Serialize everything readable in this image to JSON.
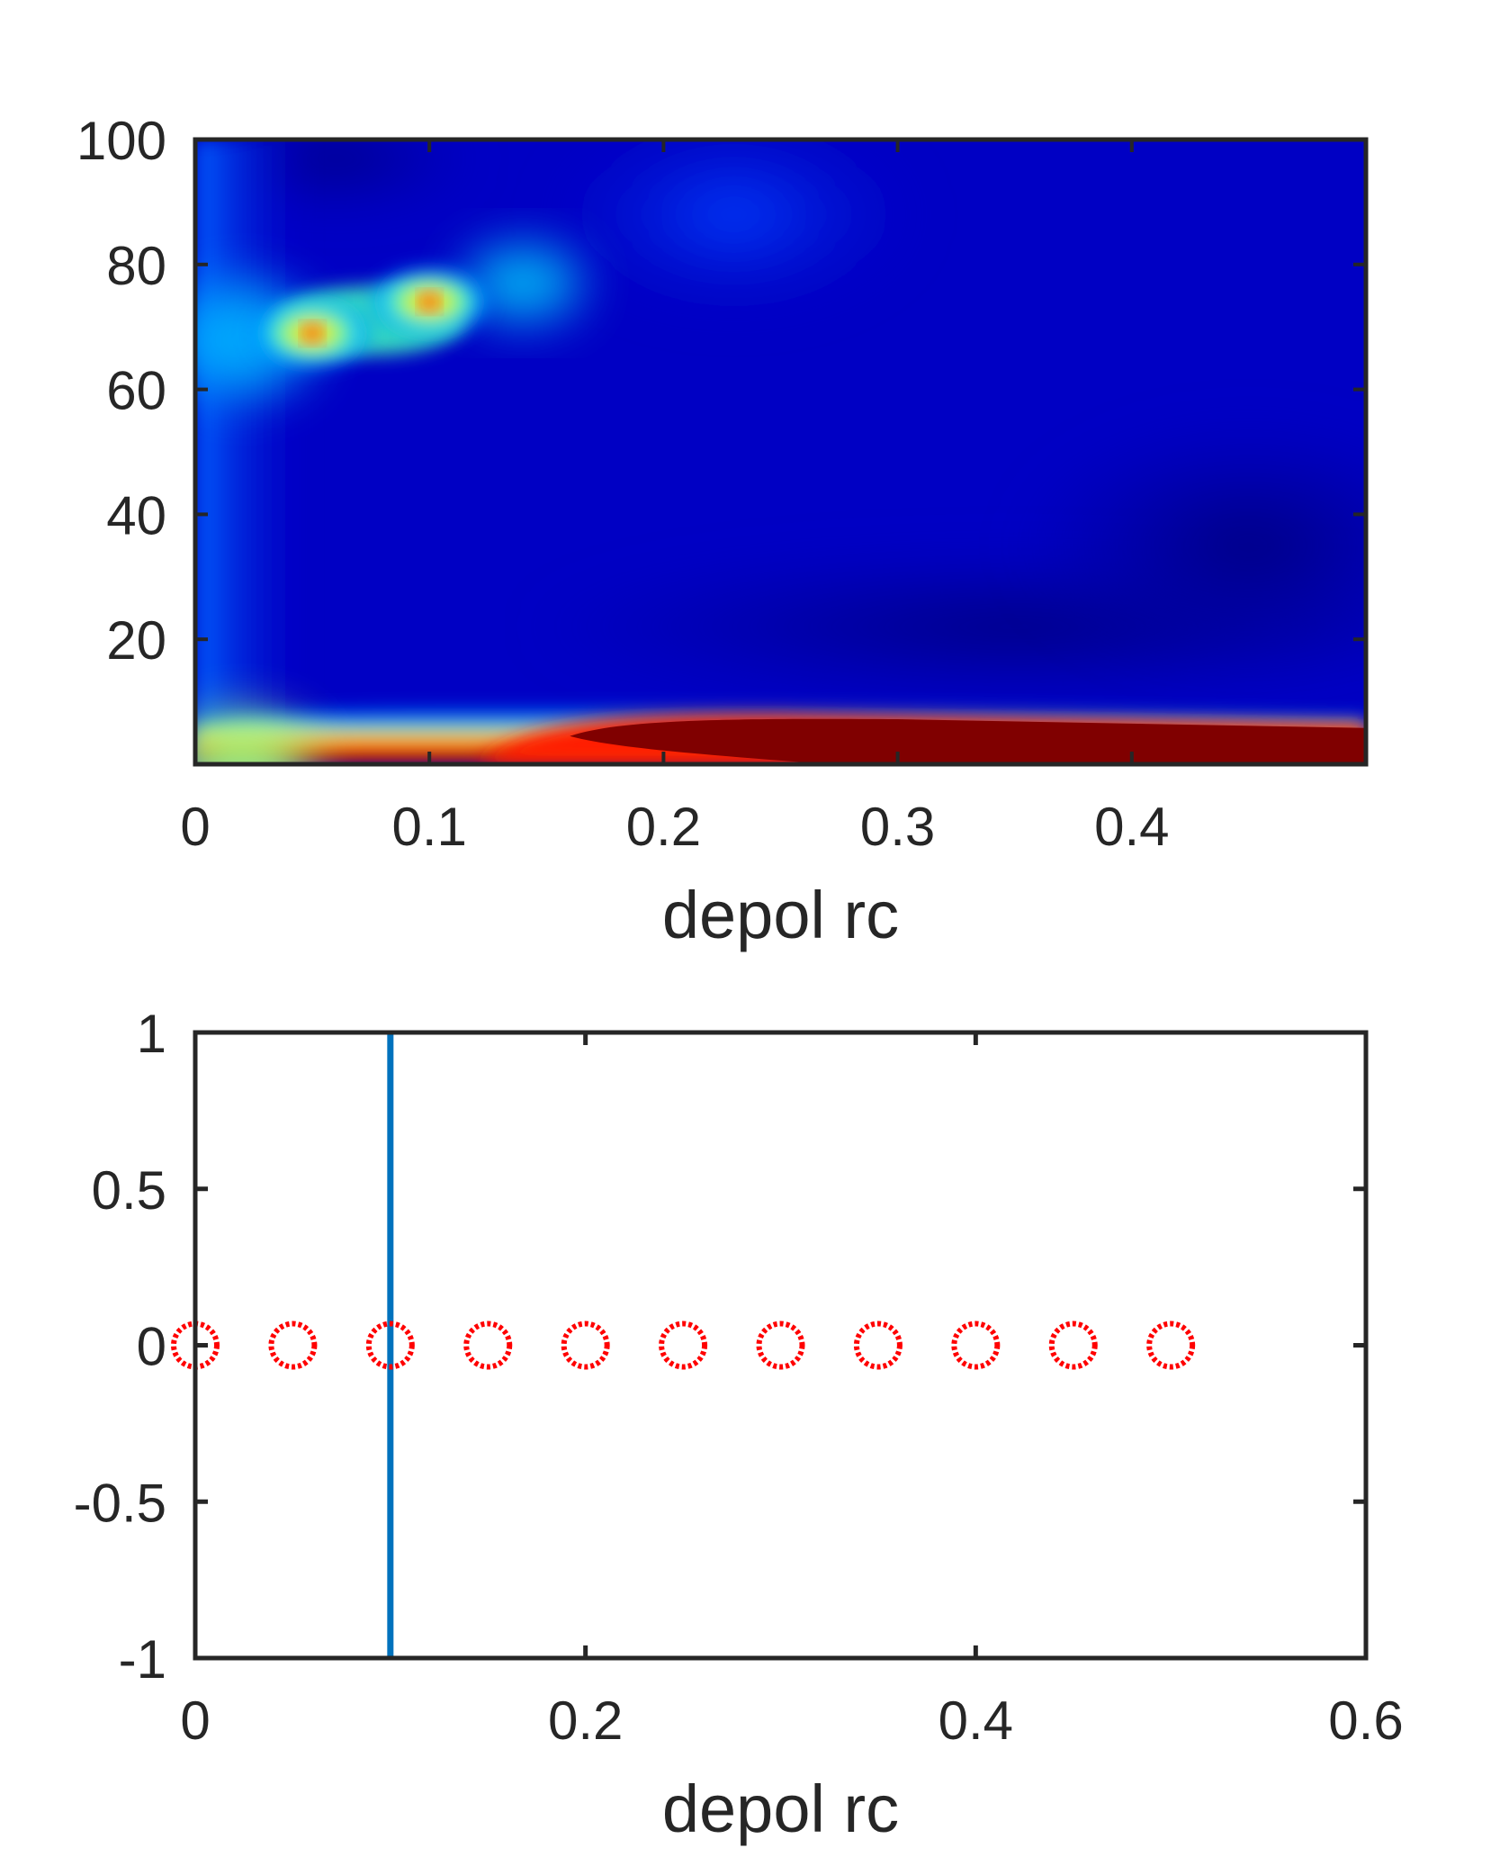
{
  "chart_data": [
    {
      "type": "heatmap",
      "title": "",
      "xlabel": "depol rc",
      "ylabel": "",
      "xlim": [
        0,
        0.5
      ],
      "ylim": [
        0,
        100
      ],
      "x_ticks": [
        "0",
        "0.1",
        "0.2",
        "0.3",
        "0.4"
      ],
      "x_tick_values": [
        0,
        0.1,
        0.2,
        0.3,
        0.4
      ],
      "y_ticks": [
        "20",
        "40",
        "60",
        "80",
        "100"
      ],
      "y_tick_values": [
        20,
        40,
        60,
        80,
        100
      ],
      "colormap": "jet",
      "features": [
        {
          "kind": "high-band",
          "description_value_range": "max",
          "x_range": [
            0.15,
            0.5
          ],
          "y_range": [
            0,
            8
          ]
        },
        {
          "kind": "peak",
          "x": 0.05,
          "y": 69,
          "level": 0.78
        },
        {
          "kind": "peak",
          "x": 0.1,
          "y": 74,
          "level": 0.72
        }
      ]
    },
    {
      "type": "scatter",
      "title": "",
      "xlabel": "depol rc",
      "ylabel": "",
      "xlim": [
        0,
        0.6
      ],
      "ylim": [
        -1,
        1
      ],
      "x_ticks": [
        "0",
        "0.2",
        "0.4",
        "0.6"
      ],
      "x_tick_values": [
        0,
        0.2,
        0.4,
        0.6
      ],
      "y_ticks": [
        "-1",
        "-0.5",
        "0",
        "0.5",
        "1"
      ],
      "y_tick_values": [
        -1,
        -0.5,
        0,
        0.5,
        1
      ],
      "points": {
        "x": [
          0,
          0.05,
          0.1,
          0.15,
          0.2,
          0.25,
          0.3,
          0.35,
          0.4,
          0.45,
          0.5
        ],
        "y": [
          0,
          0,
          0,
          0,
          0,
          0,
          0,
          0,
          0,
          0,
          0
        ],
        "marker": "circle",
        "color": "#ff0000"
      },
      "vertical_line": {
        "x": 0.1,
        "color": "#0072bd"
      }
    }
  ]
}
